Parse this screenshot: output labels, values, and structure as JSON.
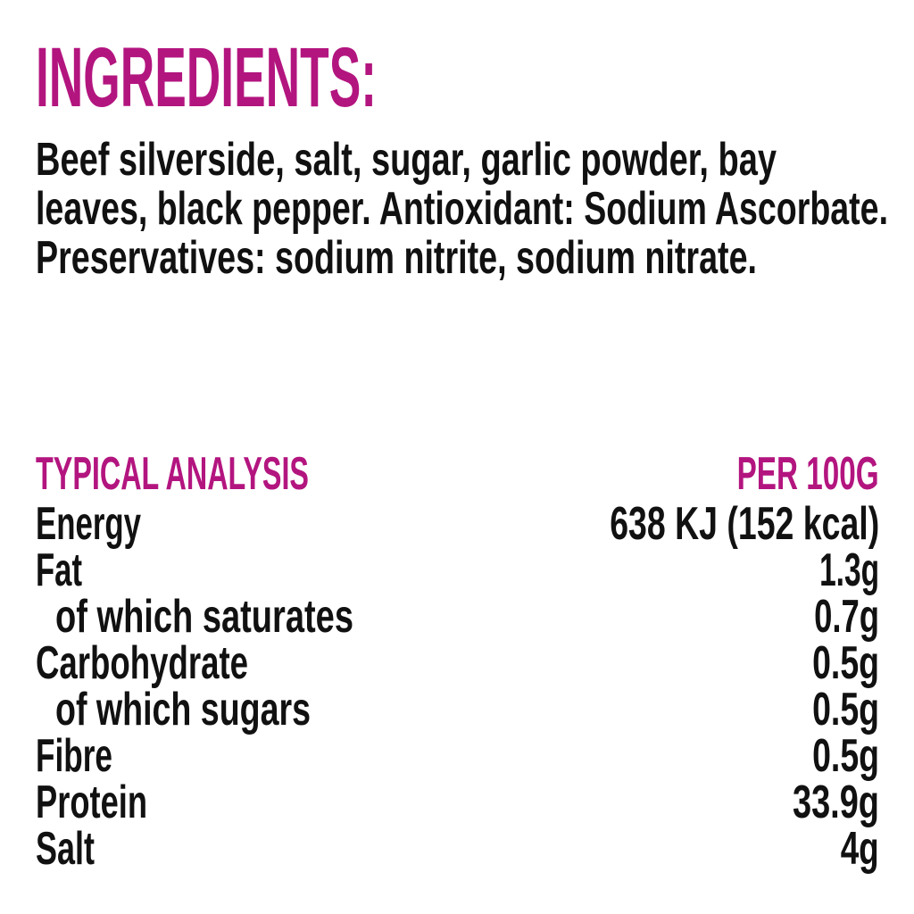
{
  "accent_color": "#b3157f",
  "ingredients": {
    "title": "INGREDIENTS:",
    "lines": [
      "Beef silverside, salt, sugar, garlic powder, bay",
      "leaves, black pepper. Antioxidant: Sodium Ascorbate.",
      "Preservatives: sodium nitrite, sodium nitrate."
    ]
  },
  "analysis": {
    "header_label": "TYPICAL ANALYSIS",
    "header_value": "PER 100G",
    "rows": [
      {
        "label": "Energy",
        "value": "638 KJ (152 kcal)"
      },
      {
        "label": "Fat",
        "value": "1.3g"
      },
      {
        "label": "of which saturates",
        "value": "0.7g"
      },
      {
        "label": "Carbohydrate",
        "value": "0.5g"
      },
      {
        "label": "of which sugars",
        "value": "0.5g"
      },
      {
        "label": "Fibre",
        "value": "0.5g"
      },
      {
        "label": "Protein",
        "value": "33.9g"
      },
      {
        "label": "Salt",
        "value": "4g"
      }
    ]
  }
}
